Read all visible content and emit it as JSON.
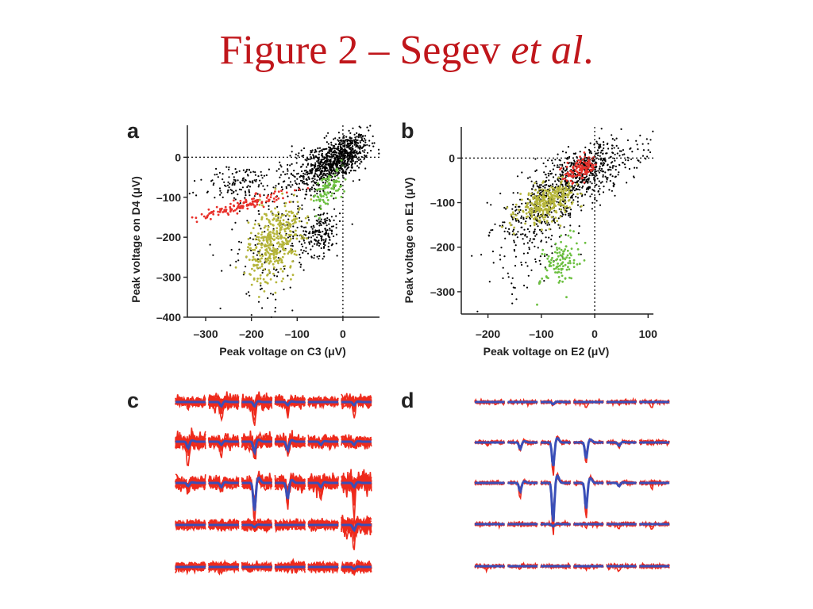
{
  "title": {
    "main": "Figure 2 – Segev ",
    "italic": "et al",
    "suffix": "."
  },
  "colors": {
    "title": "#c0161b",
    "points_other": "#000000",
    "cluster_red": "#e8302a",
    "cluster_green": "#6cc040",
    "cluster_olive": "#b5b53a",
    "trace_red": "#ee2a1c",
    "trace_blue": "#3a4fb8"
  },
  "panels": {
    "a": {
      "letter": "a"
    },
    "b": {
      "letter": "b"
    },
    "c": {
      "letter": "c"
    },
    "d": {
      "letter": "d"
    }
  },
  "chart_data": [
    {
      "panel": "a",
      "type": "scatter",
      "xlabel": "Peak voltage on C3 (μV)",
      "ylabel": "Peak voltage on D4 (μV)",
      "xlim": [
        -340,
        80
      ],
      "ylim": [
        -400,
        80
      ],
      "xticks": [
        -300,
        -200,
        -100,
        0
      ],
      "xtick_labels": [
        "–300",
        "–200",
        "–100",
        "0"
      ],
      "yticks": [
        0,
        -100,
        -200,
        -300,
        -400
      ],
      "ytick_labels": [
        "0",
        "–100",
        "–200",
        "–300",
        "–400"
      ],
      "reference_lines": "dotted lines at x = 0 and y = 0",
      "clusters": [
        {
          "color": "black",
          "center": [
            -5,
            0
          ],
          "spread": [
            30,
            25
          ],
          "slope": 0.9,
          "count": 700
        },
        {
          "color": "black",
          "center": [
            -70,
            -40
          ],
          "spread": [
            40,
            35
          ],
          "slope": 0.8,
          "count": 260
        },
        {
          "color": "black",
          "center": [
            -230,
            -65
          ],
          "spread": [
            40,
            22
          ],
          "slope": 0.4,
          "count": 120
        },
        {
          "color": "black",
          "center": [
            -50,
            -190
          ],
          "spread": [
            22,
            28
          ],
          "slope": 0.3,
          "count": 180
        },
        {
          "color": "black",
          "center": [
            -150,
            -220
          ],
          "spread": [
            60,
            80
          ],
          "slope": 1.1,
          "count": 160
        },
        {
          "color": "red",
          "center": [
            -220,
            -120
          ],
          "spread": [
            50,
            8
          ],
          "slope": 0.6,
          "count": 130
        },
        {
          "color": "green",
          "center": [
            -30,
            -80
          ],
          "spread": [
            18,
            22
          ],
          "slope": 1.3,
          "count": 90
        },
        {
          "color": "olive",
          "center": [
            -150,
            -210
          ],
          "spread": [
            28,
            45
          ],
          "slope": 1.3,
          "count": 380
        }
      ]
    },
    {
      "panel": "b",
      "type": "scatter",
      "xlabel": "Peak voltage on E2 (μV)",
      "ylabel": "Peak voltage on E1 (μV)",
      "xlim": [
        -250,
        110
      ],
      "ylim": [
        -350,
        70
      ],
      "xticks": [
        -200,
        -100,
        0,
        100
      ],
      "xtick_labels": [
        "–200",
        "–100",
        "0",
        "100"
      ],
      "yticks": [
        0,
        -100,
        -200,
        -300
      ],
      "ytick_labels": [
        "0",
        "–100",
        "–200",
        "–300"
      ],
      "reference_lines": "dotted lines at x = 0 and y = 0",
      "clusters": [
        {
          "color": "black",
          "center": [
            -25,
            -35
          ],
          "spread": [
            55,
            30
          ],
          "slope": 0.9,
          "count": 650
        },
        {
          "color": "black",
          "center": [
            -100,
            -130
          ],
          "spread": [
            45,
            35
          ],
          "slope": 0.9,
          "count": 250
        },
        {
          "color": "black",
          "center": [
            -140,
            -230
          ],
          "spread": [
            40,
            50
          ],
          "slope": 0.6,
          "count": 60
        },
        {
          "color": "red",
          "center": [
            -25,
            -25
          ],
          "spread": [
            15,
            12
          ],
          "slope": 0.6,
          "count": 110
        },
        {
          "color": "olive",
          "center": [
            -90,
            -100
          ],
          "spread": [
            25,
            18
          ],
          "slope": 0.9,
          "count": 320
        },
        {
          "color": "green",
          "center": [
            -65,
            -230
          ],
          "spread": [
            18,
            28
          ],
          "slope": 1.4,
          "count": 110
        }
      ]
    },
    {
      "panel": "c",
      "type": "waveform-grid",
      "rows": 5,
      "cols": 6,
      "spikes": [
        {
          "row": 0,
          "col": 1,
          "amp": 0.4,
          "jitter": 1.6
        },
        {
          "row": 0,
          "col": 2,
          "amp": 0.4,
          "jitter": 1.3
        },
        {
          "row": 0,
          "col": 3,
          "amp": 0.3,
          "jitter": 0.9
        },
        {
          "row": 0,
          "col": 5,
          "amp": 0.3,
          "jitter": 1.0
        },
        {
          "row": 1,
          "col": 0,
          "amp": 0.6,
          "jitter": 1.5
        },
        {
          "row": 1,
          "col": 1,
          "amp": 0.3,
          "jitter": 1.0
        },
        {
          "row": 1,
          "col": 2,
          "amp": 1.0,
          "jitter": 1.5
        },
        {
          "row": 1,
          "col": 3,
          "amp": 0.8,
          "jitter": 1.2
        },
        {
          "row": 1,
          "col": 4,
          "amp": 0.3,
          "jitter": 1.0
        },
        {
          "row": 1,
          "col": 5,
          "amp": 0.3,
          "jitter": 0.8
        },
        {
          "row": 2,
          "col": 0,
          "amp": 0.3,
          "jitter": 1.1
        },
        {
          "row": 2,
          "col": 1,
          "amp": 0.4,
          "jitter": 0.9
        },
        {
          "row": 2,
          "col": 2,
          "amp": 2.6,
          "jitter": 1.4
        },
        {
          "row": 2,
          "col": 3,
          "amp": 1.5,
          "jitter": 1.6
        },
        {
          "row": 2,
          "col": 4,
          "amp": 0.4,
          "jitter": 1.8
        },
        {
          "row": 2,
          "col": 5,
          "amp": 0.4,
          "jitter": 2.2
        },
        {
          "row": 3,
          "col": 2,
          "amp": 0.2,
          "jitter": 0.8
        },
        {
          "row": 3,
          "col": 5,
          "amp": 0.5,
          "jitter": 2.2
        },
        {
          "row": 4,
          "col": 5,
          "amp": 0.2,
          "jitter": 0.8
        }
      ]
    },
    {
      "panel": "d",
      "type": "waveform-grid",
      "rows": 5,
      "cols": 6,
      "spikes": [
        {
          "row": 0,
          "col": 2,
          "amp": 0.2,
          "jitter": 0.3
        },
        {
          "row": 1,
          "col": 1,
          "amp": 0.6,
          "jitter": 0.3
        },
        {
          "row": 1,
          "col": 2,
          "amp": 2.2,
          "jitter": 0.4
        },
        {
          "row": 1,
          "col": 3,
          "amp": 1.5,
          "jitter": 0.3
        },
        {
          "row": 1,
          "col": 4,
          "amp": 0.3,
          "jitter": 0.3
        },
        {
          "row": 2,
          "col": 1,
          "amp": 0.8,
          "jitter": 0.3
        },
        {
          "row": 2,
          "col": 2,
          "amp": 3.6,
          "jitter": 0.4
        },
        {
          "row": 2,
          "col": 3,
          "amp": 2.4,
          "jitter": 0.3
        },
        {
          "row": 2,
          "col": 4,
          "amp": 0.3,
          "jitter": 0.3
        },
        {
          "row": 3,
          "col": 2,
          "amp": 0.2,
          "jitter": 0.3
        }
      ]
    }
  ]
}
